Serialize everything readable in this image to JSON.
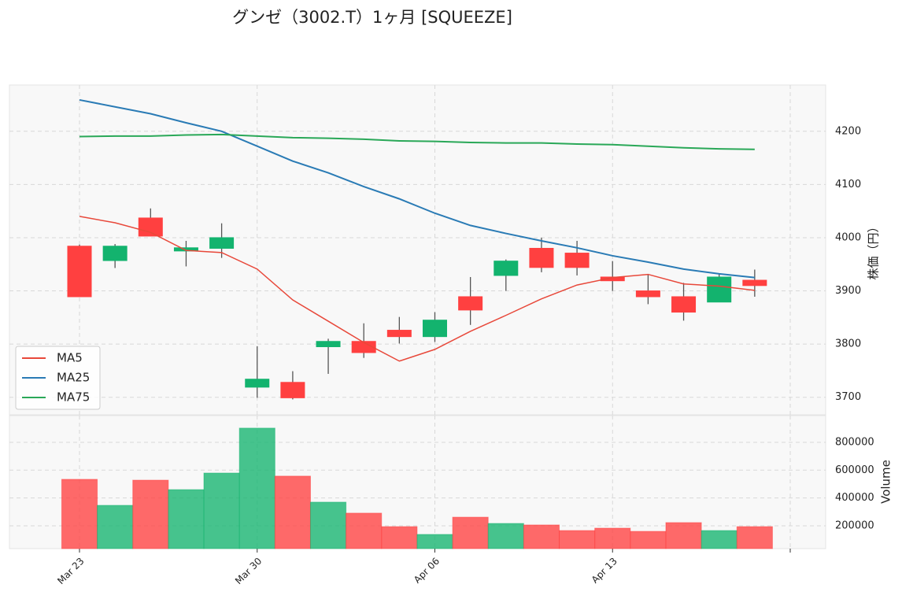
{
  "chart_data": {
    "type": "candlestick",
    "title": "グンゼ（3002.T）1ヶ月 [SQUEEZE]",
    "categories": [
      "Mar 23",
      null,
      null,
      null,
      null,
      "Mar 30",
      null,
      null,
      null,
      null,
      "Apr 06",
      null,
      null,
      null,
      null,
      "Apr 13",
      null,
      null,
      null,
      null
    ],
    "open": [
      3889,
      3984,
      4003,
      3981,
      4000,
      3734,
      3699,
      3805,
      3784,
      3814,
      3845,
      3864,
      3956,
      3944,
      3944,
      3919,
      3889,
      3860,
      3926,
      3910
    ],
    "high": [
      3987,
      3988,
      4055,
      3994,
      4027,
      3796,
      3749,
      3810,
      3839,
      3851,
      3860,
      3926,
      3959,
      4000,
      3994,
      3956,
      3931,
      3915,
      3932,
      3940
    ],
    "low": [
      3889,
      3943,
      4003,
      3946,
      3962,
      3699,
      3696,
      3744,
      3774,
      3801,
      3804,
      3836,
      3900,
      3935,
      3929,
      3900,
      3875,
      3844,
      3879,
      3889
    ],
    "close": [
      3984,
      3957,
      4037,
      3975,
      3980,
      3719,
      3728,
      3795,
      3805,
      3826,
      3814,
      3889,
      3929,
      3980,
      3971,
      3926,
      3900,
      3889,
      3879,
      3920
    ],
    "up_color": "#ff4040",
    "down_color": "#13b36e",
    "series": [
      {
        "name": "MA5",
        "color": "#e8483a",
        "values": [
          4040,
          4028,
          4010,
          3976,
          3972,
          3941,
          3883,
          3843,
          3803,
          3768,
          3790,
          3824,
          3854,
          3885,
          3911,
          3925,
          3931,
          3913,
          3909,
          3901
        ]
      },
      {
        "name": "MA25",
        "color": "#2a7bb5",
        "values": [
          4259,
          4246,
          4233,
          4216,
          4200,
          4172,
          4144,
          4122,
          4096,
          4073,
          4046,
          4023,
          4008,
          3994,
          3981,
          3966,
          3954,
          3941,
          3932,
          3925
        ]
      },
      {
        "name": "MA75",
        "color": "#2aa858",
        "values": [
          4190,
          4191,
          4191,
          4193,
          4194,
          4191,
          4188,
          4187,
          4185,
          4182,
          4181,
          4179,
          4178,
          4178,
          4176,
          4175,
          4172,
          4169,
          4167,
          4166
        ]
      }
    ],
    "ylim": [
      3667,
      4287
    ],
    "yticks": [
      3700,
      3800,
      3900,
      4000,
      4100,
      4200
    ],
    "ylabel": "株価（円）",
    "legend": "lower left",
    "grid": true,
    "volume": {
      "ylabel": "Volume",
      "ylim": [
        36000,
        992000
      ],
      "yticks": [
        200000,
        400000,
        600000,
        800000
      ],
      "values": [
        534000,
        347000,
        528000,
        460000,
        579000,
        902000,
        557000,
        370000,
        291000,
        194000,
        138000,
        262000,
        217000,
        206000,
        166000,
        183000,
        160000,
        223000,
        166000,
        194000
      ]
    }
  }
}
